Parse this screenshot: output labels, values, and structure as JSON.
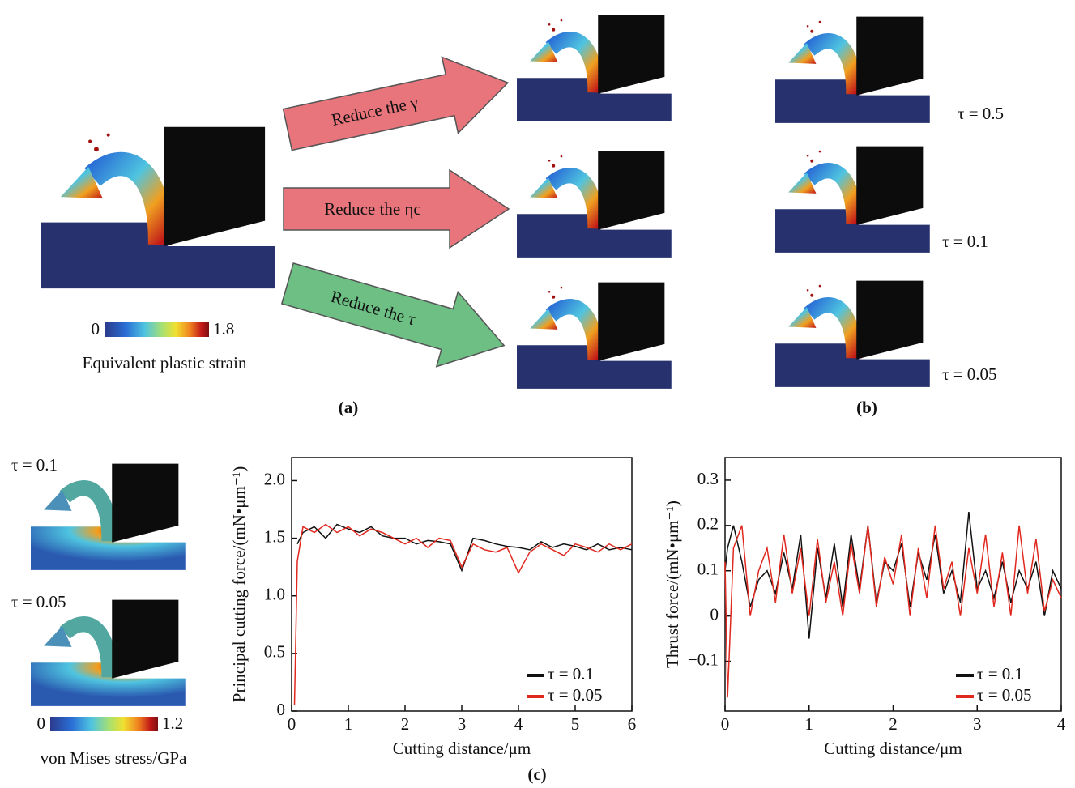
{
  "panel_a": {
    "label": "(a)",
    "arrows": [
      "Reduce the γ",
      "Reduce the ηc",
      "Reduce the τ"
    ],
    "colorbar": {
      "min": 0,
      "max": 1.8,
      "title": "Equivalent plastic strain"
    }
  },
  "panel_b": {
    "label": "(b)",
    "cases": [
      "τ = 0.5",
      "τ = 0.1",
      "τ = 0.05"
    ]
  },
  "panel_c": {
    "label": "(c)",
    "cases": [
      "τ = 0.1",
      "τ = 0.05"
    ],
    "colorbar": {
      "min": 0,
      "max": 1.2,
      "title": "von Mises stress/GPa"
    }
  },
  "chart_data": [
    {
      "type": "line",
      "xlabel": "Cutting distance/μm",
      "ylabel": "Principal cutting force/(mN•μm⁻¹)",
      "x": [
        0.05,
        0.1,
        0.2,
        0.4,
        0.6,
        0.8,
        1.0,
        1.2,
        1.4,
        1.6,
        1.8,
        2.0,
        2.2,
        2.4,
        2.6,
        2.8,
        3.0,
        3.2,
        3.4,
        3.6,
        3.8,
        4.0,
        4.2,
        4.4,
        4.6,
        4.8,
        5.0,
        5.2,
        5.4,
        5.6,
        5.8,
        6.0
      ],
      "series": [
        {
          "name": "τ = 0.1",
          "color": "#111111",
          "values": [
            null,
            1.45,
            1.55,
            1.6,
            1.5,
            1.62,
            1.58,
            1.55,
            1.6,
            1.52,
            1.5,
            1.5,
            1.45,
            1.48,
            1.47,
            1.45,
            1.22,
            1.5,
            1.48,
            1.45,
            1.43,
            1.42,
            1.4,
            1.47,
            1.42,
            1.45,
            1.43,
            1.4,
            1.45,
            1.4,
            1.42,
            1.4
          ]
        },
        {
          "name": "τ = 0.05",
          "color": "#e0281e",
          "values": [
            0.05,
            1.3,
            1.6,
            1.55,
            1.62,
            1.55,
            1.6,
            1.52,
            1.58,
            1.55,
            1.5,
            1.45,
            1.5,
            1.42,
            1.5,
            1.48,
            1.25,
            1.45,
            1.4,
            1.38,
            1.42,
            1.2,
            1.38,
            1.45,
            1.4,
            1.35,
            1.45,
            1.42,
            1.38,
            1.45,
            1.4,
            1.45
          ]
        }
      ],
      "xlim": [
        0,
        6
      ],
      "xticks": [
        0,
        1,
        2,
        3,
        4,
        5,
        6
      ],
      "ylim": [
        0,
        2.2
      ],
      "yticks": [
        0,
        0.5,
        {
          "value": 1,
          "label": "1.0"
        },
        1.5,
        {
          "value": 2,
          "label": "2.0"
        }
      ],
      "legend": "lower right"
    },
    {
      "type": "line",
      "xlabel": "Cutting distance/μm",
      "ylabel": "Thrust force/(mN•μm⁻¹)",
      "x": [
        0,
        0.03,
        0.1,
        0.2,
        0.3,
        0.4,
        0.5,
        0.6,
        0.7,
        0.8,
        0.9,
        1.0,
        1.1,
        1.2,
        1.3,
        1.4,
        1.5,
        1.6,
        1.7,
        1.8,
        1.9,
        2.0,
        2.1,
        2.2,
        2.3,
        2.4,
        2.5,
        2.6,
        2.7,
        2.8,
        2.9,
        3.0,
        3.1,
        3.2,
        3.3,
        3.4,
        3.5,
        3.6,
        3.7,
        3.8,
        3.9,
        4.0
      ],
      "series": [
        {
          "name": "τ = 0.1",
          "color": "#111111",
          "values": [
            0.1,
            0.15,
            0.2,
            0.12,
            0.02,
            0.08,
            0.1,
            0.05,
            0.14,
            0.06,
            0.18,
            -0.05,
            0.15,
            0.04,
            0.16,
            0.02,
            0.18,
            0.06,
            0.2,
            0.03,
            0.12,
            0.1,
            0.16,
            0.02,
            0.14,
            0.08,
            0.18,
            0.05,
            0.1,
            0.03,
            0.23,
            0.06,
            0.1,
            0.04,
            0.12,
            0.03,
            0.1,
            0.06,
            0.12,
            0.0,
            0.1,
            0.06
          ]
        },
        {
          "name": "τ = 0.05",
          "color": "#e0281e",
          "values": [
            0.12,
            -0.18,
            0.15,
            0.2,
            0.0,
            0.1,
            0.15,
            0.03,
            0.18,
            0.05,
            0.15,
            0.0,
            0.17,
            0.03,
            0.12,
            0.0,
            0.16,
            0.05,
            0.2,
            0.02,
            0.13,
            0.07,
            0.18,
            0.0,
            0.15,
            0.04,
            0.2,
            0.06,
            0.12,
            0.0,
            0.15,
            0.05,
            0.18,
            0.02,
            0.14,
            0.0,
            0.2,
            0.05,
            0.17,
            0.01,
            0.08,
            0.04
          ]
        }
      ],
      "xlim": [
        0,
        4
      ],
      "xticks": [
        0,
        1,
        2,
        3,
        4
      ],
      "ylim": [
        -0.21,
        0.35
      ],
      "yticks": [
        {
          "value": -0.1,
          "label": "−0.1"
        },
        0,
        0.1,
        0.2,
        0.3
      ],
      "legend": "lower right"
    }
  ]
}
